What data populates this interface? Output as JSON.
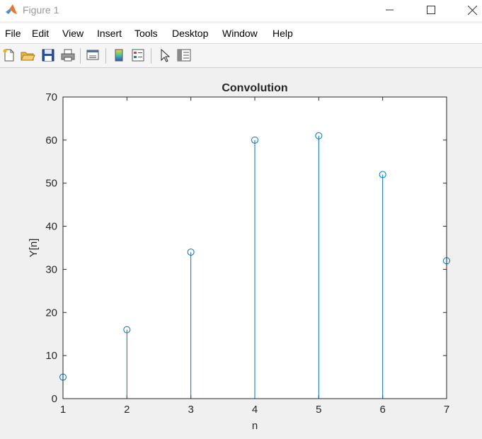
{
  "window": {
    "title": "Figure 1",
    "controls": [
      "minimize",
      "maximize",
      "close"
    ]
  },
  "menu": [
    "File",
    "Edit",
    "View",
    "Insert",
    "Tools",
    "Desktop",
    "Window",
    "Help"
  ],
  "toolbar": {
    "icons": [
      "new-figure-icon",
      "open-file-icon",
      "save-icon",
      "print-icon",
      "link-plot-icon",
      "colorbar-icon",
      "legend-icon",
      "edit-plot-icon",
      "property-inspector-icon"
    ]
  },
  "colors": {
    "stem": "#0072bd",
    "axes_background": "#ffffff",
    "figure_background": "#f0f0f0"
  },
  "chart_data": {
    "type": "stem",
    "title": "Convolution",
    "xlabel": "n",
    "ylabel": "Y[n]",
    "x": [
      1,
      2,
      3,
      4,
      5,
      6,
      7
    ],
    "y": [
      5,
      16,
      34,
      60,
      61,
      52,
      32
    ],
    "xlim": [
      1,
      7
    ],
    "ylim": [
      0,
      70
    ],
    "xticks": [
      1,
      2,
      3,
      4,
      5,
      6,
      7
    ],
    "yticks": [
      0,
      10,
      20,
      30,
      40,
      50,
      60,
      70
    ],
    "grid": false,
    "legend": "none",
    "marker": "open circle"
  }
}
